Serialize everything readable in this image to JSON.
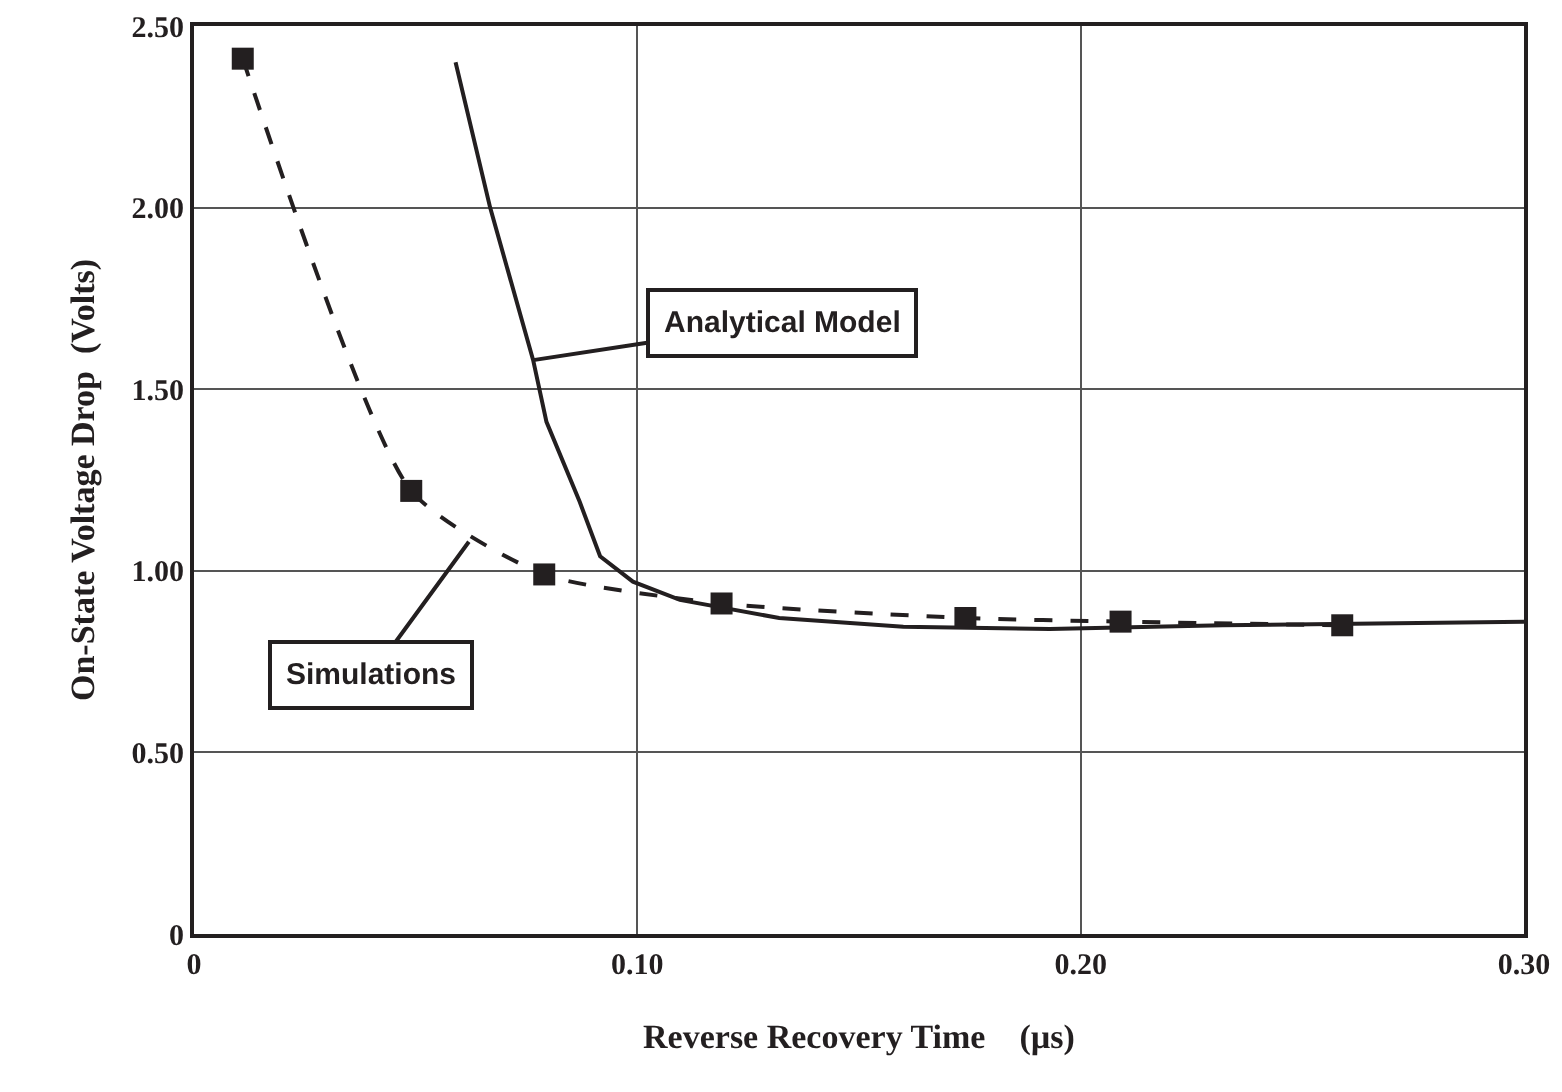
{
  "chart_data": {
    "type": "line",
    "xlabel": "Reverse Recovery Time    (µs)",
    "ylabel": "On-State Voltage Drop  (Volts)",
    "xlim": [
      0,
      0.3
    ],
    "xticks": [
      {
        "value": 0,
        "label": "0"
      },
      {
        "value": 0.1,
        "label": "0.10"
      },
      {
        "value": 0.2,
        "label": "0.20"
      },
      {
        "value": 0.3,
        "label": "0.30"
      }
    ],
    "ylim": [
      0,
      2.5
    ],
    "yticks": [
      {
        "value": 0,
        "label": "0"
      },
      {
        "value": 0.5,
        "label": "0.50"
      },
      {
        "value": 1,
        "label": "1.00"
      },
      {
        "value": 1.5,
        "label": "1.50"
      },
      {
        "value": 2,
        "label": "2.00"
      },
      {
        "value": 2.5,
        "label": "2.50"
      }
    ],
    "grid": true,
    "series": [
      {
        "color": "#231f20",
        "line_style": "solid",
        "marker": "none",
        "x": [
          0.059,
          0.0668,
          0.0765,
          0.0795,
          0.087,
          0.0916,
          0.099,
          0.1096,
          0.132,
          0.16,
          0.193,
          0.232,
          0.3
        ],
        "values": [
          2.4,
          2.0,
          1.58,
          1.41,
          1.19,
          1.04,
          0.97,
          0.92,
          0.87,
          0.846,
          0.84,
          0.85,
          0.86
        ]
      },
      {
        "color": "#231f20",
        "line_style": "dashed",
        "marker": "square",
        "x": [
          0.011,
          0.049,
          0.079,
          0.119,
          0.174,
          0.209,
          0.259
        ],
        "values": [
          2.41,
          1.22,
          0.99,
          0.91,
          0.87,
          0.86,
          0.85
        ]
      }
    ],
    "annotations": [
      {
        "text": "Analytical Model",
        "x": 0.0765,
        "y": 1.58
      },
      {
        "text": "Simulations",
        "x": 0.062,
        "y": 1.08
      }
    ]
  }
}
